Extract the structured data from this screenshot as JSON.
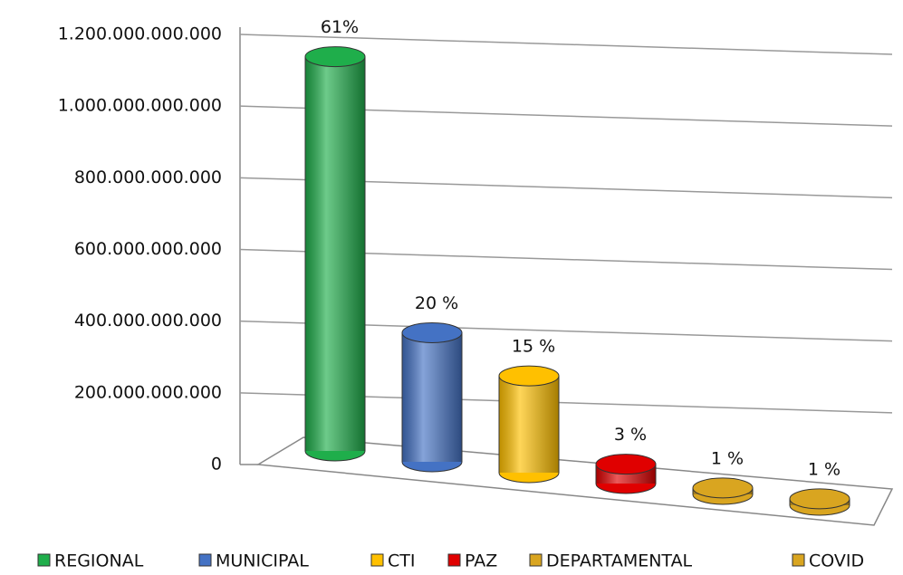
{
  "chart_data": {
    "type": "bar3d",
    "categories": [
      "REGIONAL",
      "MUNICIPAL",
      "CTI",
      "PAZ",
      "DEPARTAMENTAL",
      "COVID"
    ],
    "values": [
      1100000000000,
      360000000000,
      270000000000,
      54000000000,
      18000000000,
      18000000000
    ],
    "shares": [
      61,
      20,
      15,
      3,
      1,
      1
    ],
    "share_labels": [
      "61%",
      "20 %",
      "15 %",
      "3 %",
      "1 %",
      "1 %"
    ],
    "colors": [
      "#1fae4b",
      "#4472c4",
      "#ffc000",
      "#e00000",
      "#d9a520",
      "#d9a520"
    ],
    "ylim": [
      0,
      1200000000000
    ],
    "yticks": [
      0,
      {
        "value": 200000000000,
        "label": "200.000.000.000"
      },
      {
        "value": 400000000000,
        "label": "400.000.000.000"
      },
      {
        "value": 600000000000,
        "label": "600.000.000.000"
      },
      {
        "value": 800000000000,
        "label": "800.000.000.000"
      },
      {
        "value": 1000000000000,
        "label": "1.000.000.000.000"
      },
      {
        "value": 1200000000000,
        "label": "1.200.000.000.000"
      }
    ],
    "grid": true,
    "legend": "bottom"
  }
}
